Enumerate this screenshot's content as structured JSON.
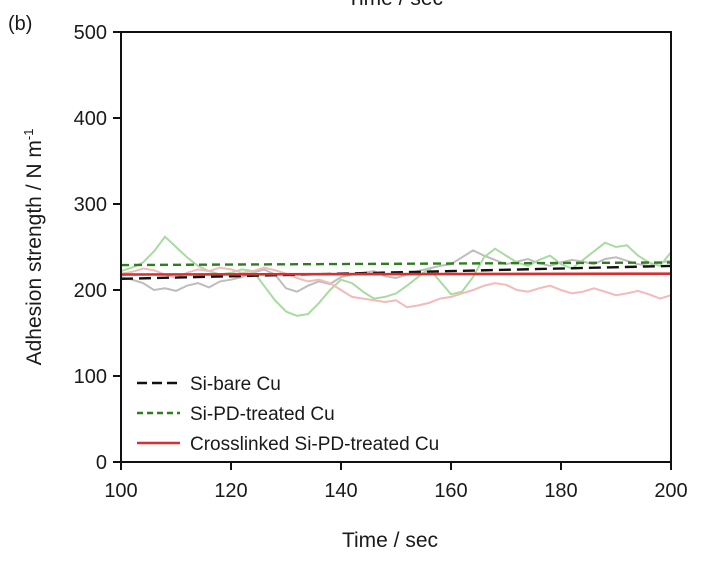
{
  "panel_label": "(b)",
  "top_cut_text": "Time / sec",
  "chart_data": {
    "type": "line",
    "xlabel": "Time / sec",
    "ylabel": "Adhesion strength / N m",
    "ylabel_superscript": "-1",
    "xlim": [
      100,
      200
    ],
    "ylim": [
      0,
      500
    ],
    "x_ticks": [
      100,
      120,
      140,
      160,
      180,
      200
    ],
    "y_ticks": [
      0,
      100,
      200,
      300,
      400,
      500
    ],
    "grid": false,
    "legend_position": "bottom-left",
    "series": [
      {
        "name": "Si-bare Cu",
        "color": "#111111",
        "style": "dashed",
        "x": [
          100,
          200
        ],
        "y": [
          213,
          228
        ],
        "raw_color": "#bdbdbd",
        "raw": {
          "x": [
            100,
            102,
            104,
            106,
            108,
            110,
            112,
            114,
            116,
            118,
            120,
            122,
            124,
            126,
            128,
            130,
            132,
            134,
            136,
            138,
            140,
            142,
            144,
            146,
            148,
            150,
            152,
            154,
            156,
            158,
            160,
            162,
            164,
            166,
            168,
            170,
            172,
            174,
            176,
            178,
            180,
            182,
            184,
            186,
            188,
            190,
            192,
            194,
            196,
            198,
            200
          ],
          "y": [
            215,
            212,
            208,
            200,
            202,
            199,
            205,
            208,
            203,
            210,
            212,
            215,
            220,
            224,
            218,
            202,
            198,
            205,
            210,
            207,
            215,
            218,
            220,
            222,
            216,
            214,
            218,
            222,
            225,
            228,
            230,
            238,
            246,
            240,
            235,
            230,
            233,
            236,
            231,
            228,
            232,
            235,
            233,
            230,
            236,
            238,
            234,
            230,
            228,
            232,
            234
          ]
        }
      },
      {
        "name": "Si-PD-treated Cu",
        "color": "#2e7d1f",
        "style": "dashed",
        "x": [
          100,
          200
        ],
        "y": [
          229,
          232
        ],
        "raw_color": "#a8dba0",
        "raw": {
          "x": [
            100,
            102,
            104,
            106,
            108,
            110,
            112,
            114,
            116,
            118,
            120,
            122,
            124,
            126,
            128,
            130,
            132,
            134,
            136,
            138,
            140,
            142,
            144,
            146,
            148,
            150,
            152,
            154,
            156,
            158,
            160,
            162,
            164,
            166,
            168,
            170,
            172,
            174,
            176,
            178,
            180,
            182,
            184,
            186,
            188,
            190,
            192,
            194,
            196,
            198,
            200
          ],
          "y": [
            222,
            226,
            232,
            245,
            262,
            250,
            238,
            228,
            222,
            218,
            220,
            224,
            222,
            205,
            188,
            175,
            170,
            172,
            185,
            200,
            212,
            208,
            198,
            190,
            192,
            196,
            205,
            215,
            225,
            210,
            195,
            198,
            215,
            238,
            248,
            240,
            232,
            228,
            235,
            240,
            230,
            225,
            235,
            245,
            255,
            250,
            252,
            240,
            232,
            228,
            244
          ]
        }
      },
      {
        "name": "Crosslinked Si-PD-treated Cu",
        "color": "#d63030",
        "style": "solid",
        "x": [
          100,
          200
        ],
        "y": [
          218,
          219
        ],
        "raw_color": "#f5b9b9",
        "raw": {
          "x": [
            100,
            102,
            104,
            106,
            108,
            110,
            112,
            114,
            116,
            118,
            120,
            122,
            124,
            126,
            128,
            130,
            132,
            134,
            136,
            138,
            140,
            142,
            144,
            146,
            148,
            150,
            152,
            154,
            156,
            158,
            160,
            162,
            164,
            166,
            168,
            170,
            172,
            174,
            176,
            178,
            180,
            182,
            184,
            186,
            188,
            190,
            192,
            194,
            196,
            198,
            200
          ],
          "y": [
            219,
            221,
            225,
            223,
            218,
            214,
            220,
            224,
            222,
            226,
            224,
            220,
            222,
            226,
            223,
            219,
            214,
            210,
            212,
            208,
            200,
            192,
            190,
            188,
            186,
            188,
            180,
            182,
            185,
            190,
            192,
            196,
            200,
            205,
            208,
            206,
            200,
            198,
            202,
            205,
            200,
            196,
            198,
            202,
            198,
            194,
            196,
            199,
            195,
            190,
            194
          ]
        }
      }
    ]
  }
}
